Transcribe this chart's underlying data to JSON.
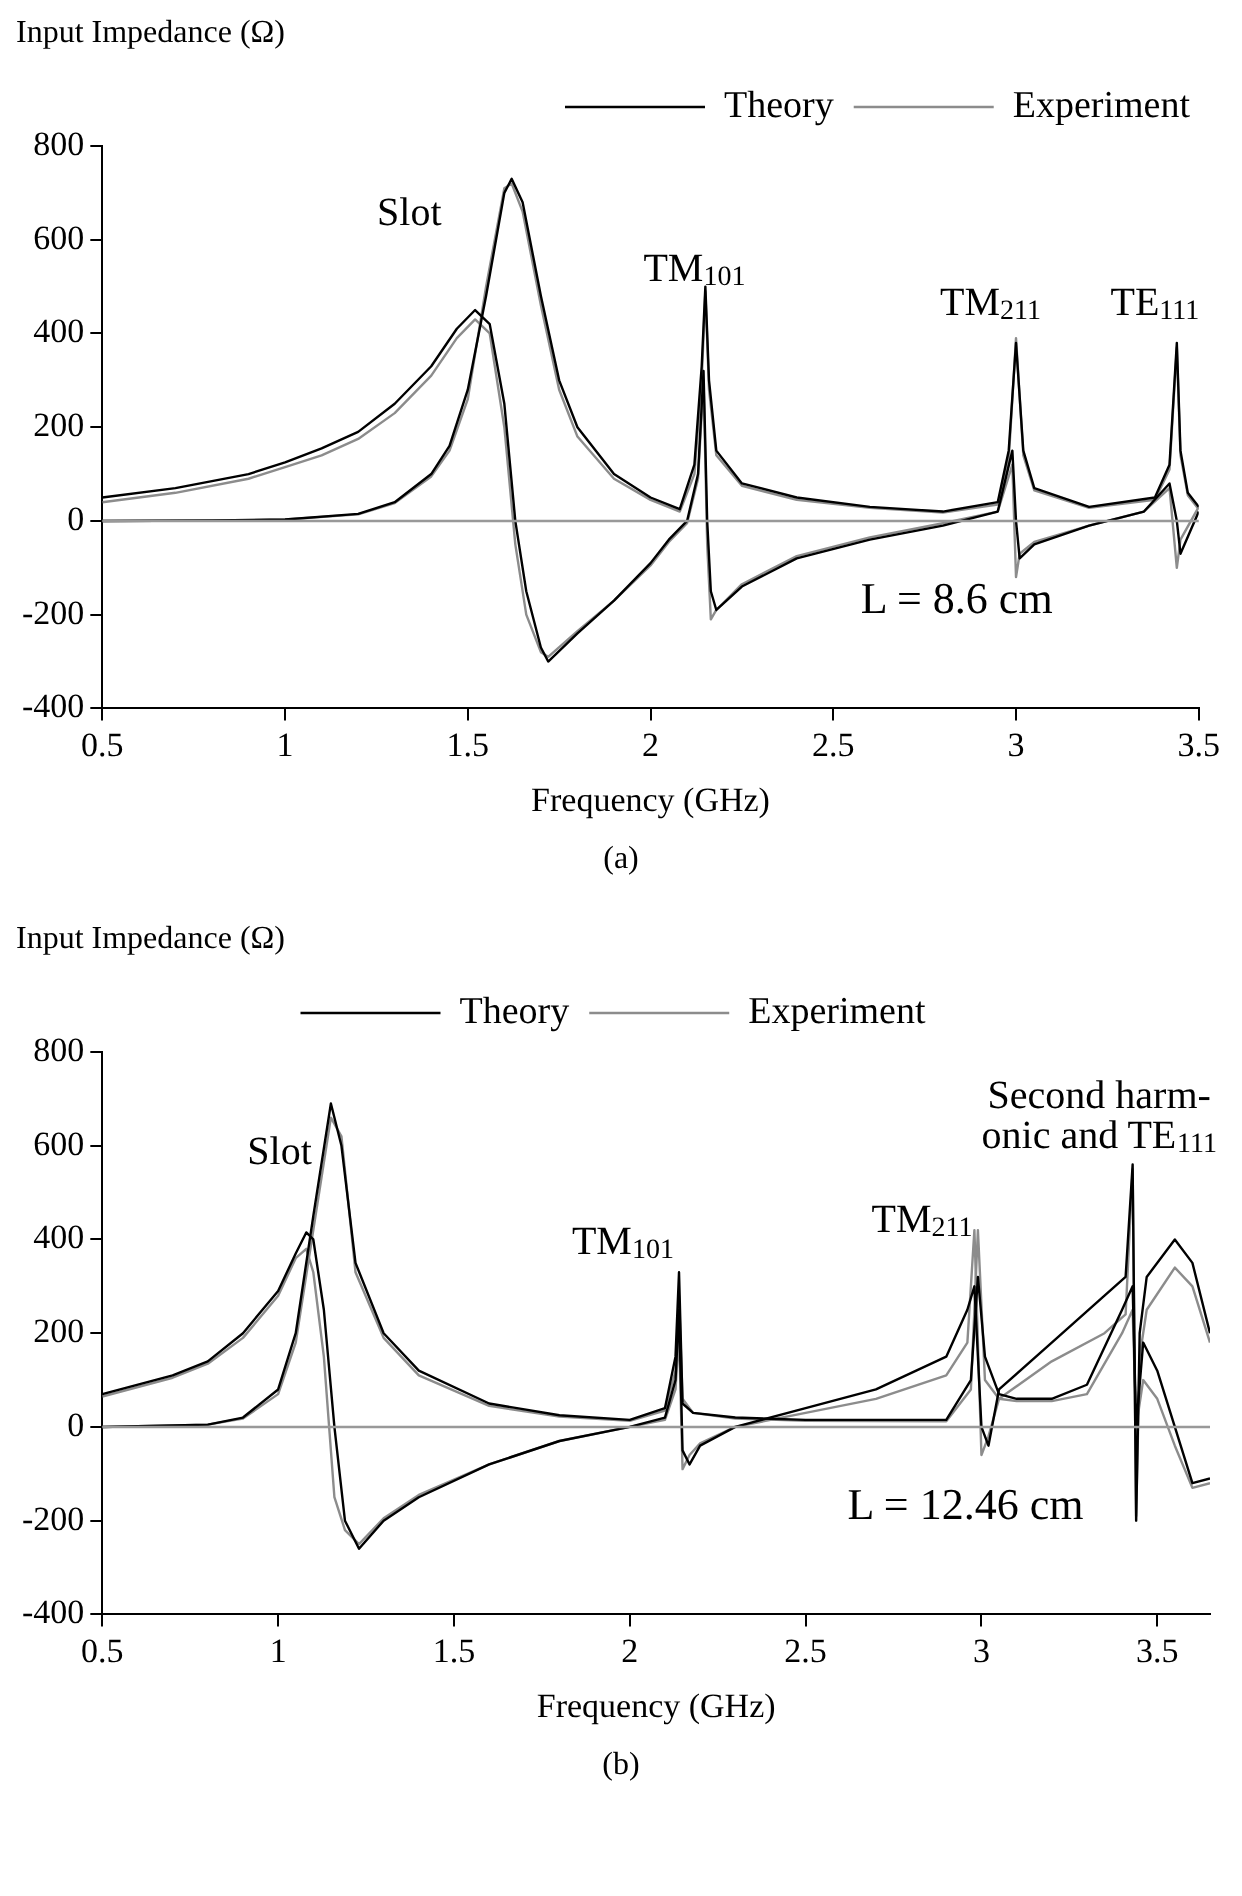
{
  "chart_data": [
    {
      "type": "line",
      "ylabel": "Input Impedance (Ω)",
      "xlabel": "Frequency (GHz)",
      "xlim": [
        0.5,
        3.5
      ],
      "xticks": [
        0.5,
        1,
        1.5,
        2,
        2.5,
        3,
        3.5
      ],
      "ylim": [
        -400,
        800
      ],
      "yticks": [
        -400,
        -200,
        0,
        200,
        400,
        600,
        800
      ],
      "legend": "top right",
      "marker": "none",
      "line_style": "solid",
      "ref_lines": [
        {
          "axis": "y",
          "value": 0,
          "color": "#999999"
        }
      ],
      "annotations": [
        "Slot",
        "TM$_{101}$",
        "TM$_{211}$",
        "TE$_{111}$",
        "L = 8.6 cm",
        "(a)"
      ],
      "series": [
        {
          "name": "Theory",
          "color": "#000000",
          "x": [
            0.5,
            0.7,
            0.9,
            1.0,
            1.1,
            1.2,
            1.3,
            1.4,
            1.47,
            1.52,
            1.56,
            1.6,
            1.63,
            1.66,
            1.7,
            1.72,
            1.8,
            1.9,
            2.0,
            2.05,
            2.1,
            2.13,
            2.145,
            2.155,
            2.165,
            2.18,
            2.25,
            2.4,
            2.6,
            2.8,
            2.95,
            2.99,
            3.0,
            3.01,
            3.05,
            3.2,
            3.35,
            3.42,
            3.44,
            3.45,
            3.5
          ],
          "values": [
            50,
            70,
            100,
            125,
            155,
            190,
            250,
            330,
            410,
            450,
            420,
            250,
            0,
            -150,
            -270,
            -300,
            -240,
            -170,
            -90,
            -40,
            0,
            100,
            320,
            0,
            -150,
            -190,
            -140,
            -80,
            -40,
            -10,
            20,
            150,
            0,
            -80,
            -50,
            -10,
            20,
            80,
            0,
            -70,
            20
          ]
        },
        {
          "color": "#000000",
          "x": [
            0.5,
            0.8,
            1.0,
            1.2,
            1.3,
            1.4,
            1.45,
            1.5,
            1.55,
            1.6,
            1.62,
            1.65,
            1.7,
            1.75,
            1.8,
            1.9,
            2.0,
            2.08,
            2.12,
            2.14,
            2.15,
            2.16,
            2.18,
            2.25,
            2.4,
            2.6,
            2.8,
            2.95,
            2.98,
            3.0,
            3.02,
            3.05,
            3.2,
            3.38,
            3.42,
            3.44,
            3.45,
            3.47,
            3.5
          ],
          "values": [
            0,
            1,
            3,
            15,
            40,
            100,
            160,
            280,
            480,
            700,
            730,
            680,
            480,
            300,
            200,
            100,
            50,
            25,
            120,
            330,
            500,
            300,
            150,
            80,
            50,
            30,
            20,
            40,
            150,
            380,
            150,
            70,
            30,
            50,
            120,
            380,
            150,
            60,
            30
          ]
        },
        {
          "name": "Experiment",
          "color": "#8c8c8c",
          "x": [
            0.5,
            0.7,
            0.9,
            1.0,
            1.1,
            1.2,
            1.3,
            1.4,
            1.47,
            1.52,
            1.56,
            1.6,
            1.63,
            1.66,
            1.7,
            1.72,
            1.8,
            1.9,
            2.0,
            2.05,
            2.1,
            2.13,
            2.145,
            2.155,
            2.165,
            2.18,
            2.25,
            2.4,
            2.6,
            2.8,
            2.95,
            2.99,
            3.0,
            3.01,
            3.05,
            3.2,
            3.35,
            3.42,
            3.44,
            3.45,
            3.5
          ],
          "values": [
            40,
            60,
            90,
            115,
            140,
            175,
            230,
            310,
            390,
            430,
            400,
            200,
            -50,
            -200,
            -280,
            -290,
            -235,
            -170,
            -95,
            -45,
            -5,
            90,
            300,
            -50,
            -210,
            -190,
            -135,
            -75,
            -35,
            -5,
            20,
            120,
            -120,
            -70,
            -45,
            -10,
            20,
            70,
            -100,
            -40,
            30
          ]
        },
        {
          "color": "#8c8c8c",
          "x": [
            0.5,
            0.8,
            1.0,
            1.2,
            1.3,
            1.4,
            1.45,
            1.5,
            1.55,
            1.6,
            1.62,
            1.65,
            1.7,
            1.75,
            1.8,
            1.9,
            2.0,
            2.08,
            2.12,
            2.14,
            2.15,
            2.16,
            2.18,
            2.25,
            2.4,
            2.6,
            2.8,
            2.95,
            2.98,
            3.0,
            3.02,
            3.05,
            3.2,
            3.38,
            3.42,
            3.44,
            3.45,
            3.47,
            3.5
          ],
          "values": [
            0,
            1,
            3,
            14,
            38,
            95,
            150,
            260,
            500,
            710,
            720,
            660,
            460,
            280,
            180,
            90,
            45,
            20,
            100,
            300,
            490,
            280,
            140,
            75,
            45,
            28,
            18,
            35,
            130,
            390,
            140,
            65,
            28,
            45,
            110,
            370,
            140,
            55,
            25
          ]
        }
      ]
    },
    {
      "type": "line",
      "ylabel": "Input Impedance (Ω)",
      "xlabel": "Frequency (GHz)",
      "xlim": [
        0.5,
        3.65
      ],
      "xticks": [
        0.5,
        1,
        1.5,
        2,
        2.5,
        3,
        3.5
      ],
      "ylim": [
        -400,
        800
      ],
      "yticks": [
        -400,
        -200,
        0,
        200,
        400,
        600,
        800
      ],
      "legend": "top",
      "marker": "none",
      "line_style": "solid",
      "ref_lines": [
        {
          "axis": "y",
          "value": 0,
          "color": "#999999"
        }
      ],
      "annotations": [
        "Slot",
        "TM$_{101}$",
        "TM$_{211}$",
        "Second harm-",
        "onic and TE$_{111}$",
        "L = 12.46 cm",
        "(b)"
      ],
      "series": [
        {
          "name": "Theory",
          "color": "#000000",
          "x": [
            0.5,
            0.7,
            0.8,
            0.9,
            1.0,
            1.05,
            1.08,
            1.1,
            1.13,
            1.16,
            1.19,
            1.23,
            1.3,
            1.4,
            1.6,
            1.8,
            2.0,
            2.1,
            2.13,
            2.14,
            2.15,
            2.17,
            2.2,
            2.3,
            2.5,
            2.7,
            2.9,
            2.96,
            2.98,
            3.0,
            3.02,
            3.05,
            3.2,
            3.35,
            3.41,
            3.43,
            3.44,
            3.45,
            3.47,
            3.55,
            3.6,
            3.65
          ],
          "values": [
            70,
            110,
            140,
            200,
            290,
            370,
            415,
            400,
            250,
            0,
            -200,
            -260,
            -200,
            -150,
            -80,
            -30,
            0,
            20,
            100,
            250,
            -50,
            -80,
            -40,
            0,
            40,
            80,
            150,
            250,
            300,
            0,
            -40,
            80,
            180,
            280,
            320,
            560,
            -200,
            200,
            320,
            400,
            350,
            200
          ]
        },
        {
          "color": "#000000",
          "x": [
            0.5,
            0.8,
            0.9,
            1.0,
            1.05,
            1.1,
            1.15,
            1.18,
            1.22,
            1.3,
            1.4,
            1.6,
            1.8,
            2.0,
            2.1,
            2.13,
            2.14,
            2.15,
            2.18,
            2.3,
            2.5,
            2.9,
            2.97,
            2.99,
            3.01,
            3.05,
            3.1,
            3.2,
            3.3,
            3.4,
            3.43,
            3.44,
            3.46,
            3.5,
            3.55,
            3.6,
            3.65
          ],
          "values": [
            0,
            5,
            20,
            80,
            200,
            450,
            690,
            600,
            350,
            200,
            120,
            50,
            25,
            15,
            40,
            150,
            330,
            50,
            30,
            20,
            15,
            15,
            100,
            320,
            150,
            70,
            60,
            60,
            90,
            250,
            300,
            0,
            180,
            120,
            0,
            -120,
            -110
          ]
        },
        {
          "name": "Experiment",
          "color": "#8c8c8c",
          "x": [
            0.5,
            0.7,
            0.8,
            0.9,
            1.0,
            1.05,
            1.08,
            1.1,
            1.13,
            1.16,
            1.19,
            1.23,
            1.3,
            1.4,
            1.6,
            1.8,
            2.0,
            2.1,
            2.13,
            2.14,
            2.15,
            2.17,
            2.2,
            2.3,
            2.5,
            2.7,
            2.9,
            2.96,
            2.98,
            3.0,
            3.02,
            3.05,
            3.2,
            3.35,
            3.41,
            3.43,
            3.44,
            3.45,
            3.47,
            3.55,
            3.6,
            3.65
          ],
          "values": [
            65,
            105,
            135,
            190,
            280,
            360,
            380,
            330,
            150,
            -150,
            -220,
            -250,
            -195,
            -145,
            -80,
            -30,
            0,
            15,
            80,
            200,
            -90,
            -60,
            -35,
            0,
            30,
            60,
            110,
            180,
            420,
            -60,
            -20,
            60,
            140,
            200,
            240,
            550,
            -190,
            150,
            250,
            340,
            300,
            180
          ]
        },
        {
          "color": "#8c8c8c",
          "x": [
            0.5,
            0.8,
            0.9,
            1.0,
            1.05,
            1.1,
            1.15,
            1.18,
            1.22,
            1.3,
            1.4,
            1.6,
            1.8,
            2.0,
            2.1,
            2.13,
            2.14,
            2.15,
            2.18,
            2.3,
            2.5,
            2.9,
            2.97,
            2.99,
            3.01,
            3.05,
            3.1,
            3.2,
            3.3,
            3.4,
            3.43,
            3.44,
            3.46,
            3.5,
            3.55,
            3.6,
            3.65
          ],
          "values": [
            0,
            5,
            18,
            70,
            180,
            420,
            660,
            620,
            330,
            190,
            110,
            45,
            22,
            13,
            35,
            120,
            280,
            60,
            30,
            18,
            13,
            12,
            80,
            420,
            100,
            60,
            55,
            55,
            70,
            200,
            250,
            0,
            100,
            60,
            -40,
            -130,
            -120
          ]
        }
      ]
    }
  ]
}
